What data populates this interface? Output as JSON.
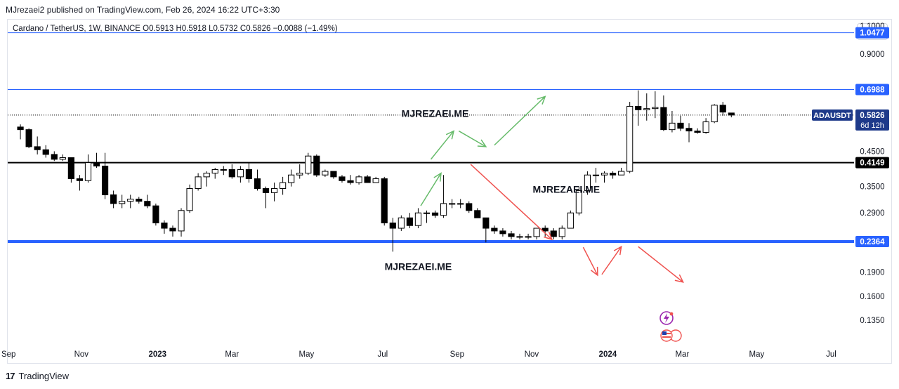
{
  "header": {
    "published": "MJrezaei2 published on TradingView.com, Feb 26, 2024 16:22 UTC+3:30",
    "legend": "Cardano / TetherUS, 1W, BINANCE  O0.5913  H0.5918  L0.5732  C0.5826  −0.0088 (−1.49%)",
    "unit_button": "USDT"
  },
  "footer": {
    "brand": "TradingView",
    "logo_icon": "tradingview-logo-icon"
  },
  "colors": {
    "up_candle_fill": "#ffffff",
    "down_candle_fill": "#000000",
    "candle_outline": "#000000",
    "thin_line": "#2962ff",
    "thick_support": "#2962ff",
    "resistance_black": "#000000",
    "green_arrow": "#66bb6a",
    "red_arrow": "#ef5350",
    "badge_blue": "#1e3a8a"
  },
  "chart_data": {
    "type": "candlestick",
    "symbol": "ADAUSDT",
    "interval": "1W",
    "y_scale": "log",
    "ylim": [
      0.115,
      1.15
    ],
    "y_ticks": [
      "1.1000",
      "0.9000",
      "0.4500",
      "0.3500",
      "0.2900",
      "0.1900",
      "0.1600",
      "0.1350"
    ],
    "y_tick_values": [
      1.1,
      0.9,
      0.45,
      0.35,
      0.29,
      0.19,
      0.16,
      0.135
    ],
    "x_ticks": [
      "Sep",
      "Nov",
      "2023",
      "Mar",
      "May",
      "Jul",
      "Sep",
      "Nov",
      "2024",
      "Mar",
      "May",
      "Jul"
    ],
    "x_tick_bold": [
      false,
      false,
      true,
      false,
      false,
      false,
      false,
      false,
      true,
      false,
      false,
      false
    ],
    "x_tick_bar_index": [
      -1.4,
      7.2,
      16.2,
      25.0,
      33.8,
      42.8,
      51.6,
      60.4,
      69.4,
      78.2,
      87.0,
      95.8
    ],
    "x_range_bars": [
      -1.5,
      98.5
    ],
    "price_lines": [
      {
        "label": "1.0477",
        "value": 1.0477,
        "style": "thin-blue"
      },
      {
        "label": "0.6988",
        "value": 0.6988,
        "style": "thin-blue"
      },
      {
        "label": "0.4149",
        "value": 0.4149,
        "style": "thick-black"
      },
      {
        "label": "0.2364",
        "value": 0.2364,
        "style": "thick-blue"
      }
    ],
    "current_price": {
      "symbol": "ADAUSDT",
      "label": "0.5826",
      "countdown": "6d 12h",
      "value": 0.5826
    },
    "watermarks": [
      {
        "text": "MJREZAEI.ME",
        "bar": 49,
        "price": 0.575
      },
      {
        "text": "MJREZAEI.ME",
        "bar": 64.5,
        "price": 0.335
      },
      {
        "text": "MJREZAEI.ME",
        "bar": 47,
        "price": 0.193
      }
    ],
    "arrows_green": [
      {
        "from": [
          47.3,
          0.305
        ],
        "to": [
          49.7,
          0.385
        ]
      },
      {
        "from": [
          48.5,
          0.425
        ],
        "to": [
          51.2,
          0.52
        ]
      },
      {
        "from": [
          51.8,
          0.52
        ],
        "to": [
          55,
          0.465
        ]
      },
      {
        "from": [
          56,
          0.47
        ],
        "to": [
          62,
          0.665
        ]
      }
    ],
    "arrows_red": [
      {
        "from": [
          53.2,
          0.41
        ],
        "to": [
          62.8,
          0.24
        ]
      },
      {
        "from": [
          66.5,
          0.227
        ],
        "to": [
          68.2,
          0.186
        ]
      },
      {
        "from": [
          68.7,
          0.187
        ],
        "to": [
          71,
          0.228
        ]
      },
      {
        "from": [
          73,
          0.228
        ],
        "to": [
          78.3,
          0.177
        ]
      }
    ],
    "candles": [
      {
        "o": 0.535,
        "h": 0.545,
        "l": 0.49,
        "c": 0.525
      },
      {
        "o": 0.525,
        "h": 0.53,
        "l": 0.46,
        "c": 0.465
      },
      {
        "o": 0.465,
        "h": 0.5,
        "l": 0.44,
        "c": 0.455
      },
      {
        "o": 0.455,
        "h": 0.47,
        "l": 0.43,
        "c": 0.44
      },
      {
        "o": 0.44,
        "h": 0.45,
        "l": 0.42,
        "c": 0.425
      },
      {
        "o": 0.425,
        "h": 0.44,
        "l": 0.42,
        "c": 0.43
      },
      {
        "o": 0.43,
        "h": 0.43,
        "l": 0.36,
        "c": 0.37
      },
      {
        "o": 0.37,
        "h": 0.38,
        "l": 0.34,
        "c": 0.365
      },
      {
        "o": 0.365,
        "h": 0.44,
        "l": 0.36,
        "c": 0.415
      },
      {
        "o": 0.415,
        "h": 0.445,
        "l": 0.4,
        "c": 0.405
      },
      {
        "o": 0.405,
        "h": 0.445,
        "l": 0.32,
        "c": 0.33
      },
      {
        "o": 0.33,
        "h": 0.34,
        "l": 0.3,
        "c": 0.31
      },
      {
        "o": 0.31,
        "h": 0.33,
        "l": 0.3,
        "c": 0.315
      },
      {
        "o": 0.315,
        "h": 0.33,
        "l": 0.3,
        "c": 0.32
      },
      {
        "o": 0.32,
        "h": 0.325,
        "l": 0.31,
        "c": 0.315
      },
      {
        "o": 0.315,
        "h": 0.33,
        "l": 0.3,
        "c": 0.305
      },
      {
        "o": 0.305,
        "h": 0.31,
        "l": 0.265,
        "c": 0.27
      },
      {
        "o": 0.27,
        "h": 0.275,
        "l": 0.25,
        "c": 0.26
      },
      {
        "o": 0.26,
        "h": 0.265,
        "l": 0.245,
        "c": 0.255
      },
      {
        "o": 0.255,
        "h": 0.3,
        "l": 0.245,
        "c": 0.295
      },
      {
        "o": 0.295,
        "h": 0.355,
        "l": 0.29,
        "c": 0.345
      },
      {
        "o": 0.345,
        "h": 0.385,
        "l": 0.34,
        "c": 0.375
      },
      {
        "o": 0.375,
        "h": 0.39,
        "l": 0.35,
        "c": 0.385
      },
      {
        "o": 0.385,
        "h": 0.4,
        "l": 0.37,
        "c": 0.395
      },
      {
        "o": 0.395,
        "h": 0.405,
        "l": 0.38,
        "c": 0.395
      },
      {
        "o": 0.395,
        "h": 0.41,
        "l": 0.37,
        "c": 0.375
      },
      {
        "o": 0.375,
        "h": 0.405,
        "l": 0.36,
        "c": 0.395
      },
      {
        "o": 0.395,
        "h": 0.415,
        "l": 0.36,
        "c": 0.37
      },
      {
        "o": 0.37,
        "h": 0.395,
        "l": 0.34,
        "c": 0.345
      },
      {
        "o": 0.345,
        "h": 0.35,
        "l": 0.3,
        "c": 0.335
      },
      {
        "o": 0.335,
        "h": 0.36,
        "l": 0.315,
        "c": 0.345
      },
      {
        "o": 0.345,
        "h": 0.375,
        "l": 0.33,
        "c": 0.36
      },
      {
        "o": 0.36,
        "h": 0.395,
        "l": 0.35,
        "c": 0.38
      },
      {
        "o": 0.38,
        "h": 0.41,
        "l": 0.37,
        "c": 0.385
      },
      {
        "o": 0.385,
        "h": 0.445,
        "l": 0.38,
        "c": 0.435
      },
      {
        "o": 0.435,
        "h": 0.44,
        "l": 0.375,
        "c": 0.38
      },
      {
        "o": 0.38,
        "h": 0.395,
        "l": 0.375,
        "c": 0.39
      },
      {
        "o": 0.39,
        "h": 0.39,
        "l": 0.37,
        "c": 0.375
      },
      {
        "o": 0.375,
        "h": 0.38,
        "l": 0.36,
        "c": 0.365
      },
      {
        "o": 0.365,
        "h": 0.38,
        "l": 0.355,
        "c": 0.36
      },
      {
        "o": 0.36,
        "h": 0.38,
        "l": 0.355,
        "c": 0.375
      },
      {
        "o": 0.375,
        "h": 0.38,
        "l": 0.36,
        "c": 0.36
      },
      {
        "o": 0.36,
        "h": 0.375,
        "l": 0.36,
        "c": 0.37
      },
      {
        "o": 0.37,
        "h": 0.375,
        "l": 0.265,
        "c": 0.27
      },
      {
        "o": 0.27,
        "h": 0.28,
        "l": 0.22,
        "c": 0.26
      },
      {
        "o": 0.26,
        "h": 0.285,
        "l": 0.255,
        "c": 0.28
      },
      {
        "o": 0.28,
        "h": 0.29,
        "l": 0.26,
        "c": 0.265
      },
      {
        "o": 0.265,
        "h": 0.3,
        "l": 0.26,
        "c": 0.29
      },
      {
        "o": 0.29,
        "h": 0.295,
        "l": 0.27,
        "c": 0.29
      },
      {
        "o": 0.29,
        "h": 0.295,
        "l": 0.28,
        "c": 0.285
      },
      {
        "o": 0.285,
        "h": 0.38,
        "l": 0.28,
        "c": 0.31
      },
      {
        "o": 0.31,
        "h": 0.32,
        "l": 0.3,
        "c": 0.31
      },
      {
        "o": 0.31,
        "h": 0.32,
        "l": 0.3,
        "c": 0.31
      },
      {
        "o": 0.31,
        "h": 0.315,
        "l": 0.29,
        "c": 0.295
      },
      {
        "o": 0.295,
        "h": 0.3,
        "l": 0.28,
        "c": 0.28
      },
      {
        "o": 0.28,
        "h": 0.28,
        "l": 0.235,
        "c": 0.26
      },
      {
        "o": 0.26,
        "h": 0.265,
        "l": 0.25,
        "c": 0.255
      },
      {
        "o": 0.255,
        "h": 0.26,
        "l": 0.245,
        "c": 0.25
      },
      {
        "o": 0.25,
        "h": 0.255,
        "l": 0.24,
        "c": 0.245
      },
      {
        "o": 0.245,
        "h": 0.25,
        "l": 0.24,
        "c": 0.245
      },
      {
        "o": 0.245,
        "h": 0.25,
        "l": 0.24,
        "c": 0.245
      },
      {
        "o": 0.245,
        "h": 0.26,
        "l": 0.24,
        "c": 0.26
      },
      {
        "o": 0.26,
        "h": 0.265,
        "l": 0.245,
        "c": 0.255
      },
      {
        "o": 0.255,
        "h": 0.26,
        "l": 0.24,
        "c": 0.245
      },
      {
        "o": 0.245,
        "h": 0.265,
        "l": 0.24,
        "c": 0.26
      },
      {
        "o": 0.26,
        "h": 0.295,
        "l": 0.26,
        "c": 0.29
      },
      {
        "o": 0.29,
        "h": 0.35,
        "l": 0.285,
        "c": 0.34
      },
      {
        "o": 0.34,
        "h": 0.39,
        "l": 0.33,
        "c": 0.38
      },
      {
        "o": 0.38,
        "h": 0.4,
        "l": 0.36,
        "c": 0.38
      },
      {
        "o": 0.38,
        "h": 0.39,
        "l": 0.36,
        "c": 0.385
      },
      {
        "o": 0.385,
        "h": 0.39,
        "l": 0.37,
        "c": 0.38
      },
      {
        "o": 0.38,
        "h": 0.4,
        "l": 0.38,
        "c": 0.39
      },
      {
        "o": 0.39,
        "h": 0.64,
        "l": 0.385,
        "c": 0.62
      },
      {
        "o": 0.62,
        "h": 0.695,
        "l": 0.54,
        "c": 0.605
      },
      {
        "o": 0.605,
        "h": 0.68,
        "l": 0.56,
        "c": 0.61
      },
      {
        "o": 0.61,
        "h": 0.69,
        "l": 0.57,
        "c": 0.615
      },
      {
        "o": 0.615,
        "h": 0.67,
        "l": 0.52,
        "c": 0.525
      },
      {
        "o": 0.525,
        "h": 0.6,
        "l": 0.515,
        "c": 0.55
      },
      {
        "o": 0.55,
        "h": 0.58,
        "l": 0.52,
        "c": 0.53
      },
      {
        "o": 0.53,
        "h": 0.55,
        "l": 0.48,
        "c": 0.52
      },
      {
        "o": 0.52,
        "h": 0.53,
        "l": 0.51,
        "c": 0.515
      },
      {
        "o": 0.515,
        "h": 0.57,
        "l": 0.51,
        "c": 0.555
      },
      {
        "o": 0.555,
        "h": 0.63,
        "l": 0.55,
        "c": 0.625
      },
      {
        "o": 0.625,
        "h": 0.64,
        "l": 0.58,
        "c": 0.595
      },
      {
        "o": 0.5913,
        "h": 0.5918,
        "l": 0.5732,
        "c": 0.5826
      }
    ]
  }
}
